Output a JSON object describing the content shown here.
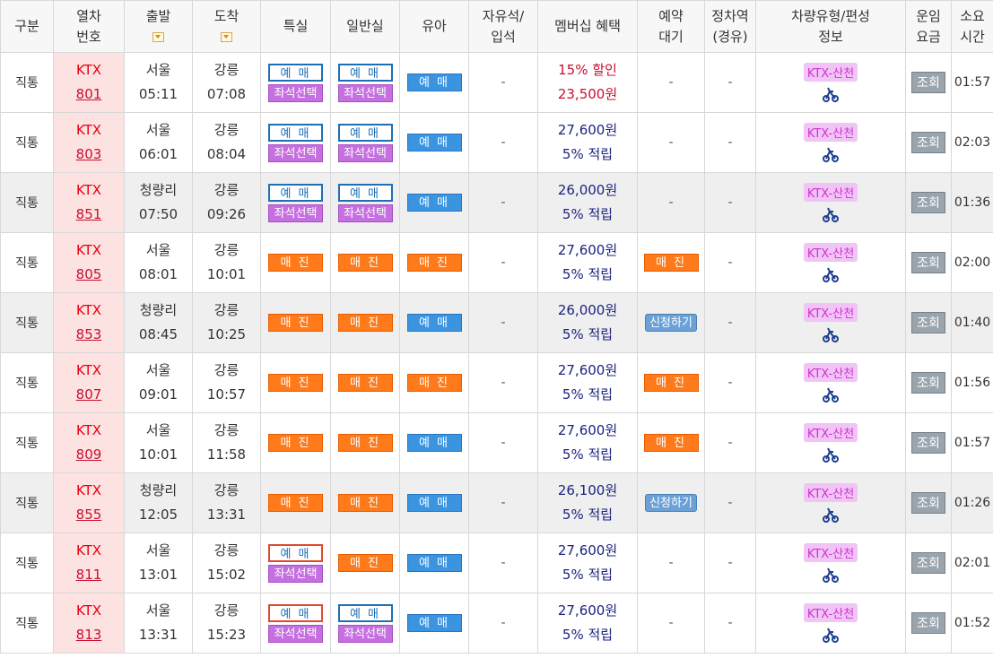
{
  "headers": {
    "type": "구분",
    "train_no": "열차번호",
    "departure": "출발",
    "arrival": "도착",
    "special": "특실",
    "general": "일반실",
    "child": "유아",
    "free_seat": "자유석/입석",
    "membership": "멤버십 혜택",
    "reserve_wait": "예약대기",
    "stops": "정차역(경유)",
    "car_type": "차량유형/편성정보",
    "fare": "운임요금",
    "duration": "소요시간"
  },
  "labels": {
    "book": "예 매",
    "seat_select": "좌석선택",
    "sold_out": "매 진",
    "apply": "신청하기",
    "search": "조회",
    "car_badge": "KTX-산천",
    "dash": "-",
    "points": "5% 적립"
  },
  "colors": {
    "red": "#e60012",
    "blue_btn": "#3a94e0",
    "orange": "#ff7a1a",
    "purple": "#c56fe0"
  },
  "icons": {
    "sort": "sort-dropdown-icon",
    "cart": "bicycle-icon"
  },
  "rows": [
    {
      "type": "직통",
      "cls": "KTX",
      "no": "801",
      "dep": "서울",
      "dep_time": "05:11",
      "arr": "강릉",
      "arr_time": "07:08",
      "special": "book",
      "general": "book",
      "child": "book",
      "free": "-",
      "mem1": "15% 할인",
      "mem2": "23,500원",
      "discount": true,
      "wait": "-",
      "stops": "-",
      "duration": "01:57",
      "gray": false,
      "red_special": false
    },
    {
      "type": "직통",
      "cls": "KTX",
      "no": "803",
      "dep": "서울",
      "dep_time": "06:01",
      "arr": "강릉",
      "arr_time": "08:04",
      "special": "book",
      "general": "book",
      "child": "book",
      "free": "-",
      "mem1": "27,600원",
      "mem2": "5% 적립",
      "discount": false,
      "wait": "-",
      "stops": "-",
      "duration": "02:03",
      "gray": false,
      "red_special": false
    },
    {
      "type": "직통",
      "cls": "KTX",
      "no": "851",
      "dep": "청량리",
      "dep_time": "07:50",
      "arr": "강릉",
      "arr_time": "09:26",
      "special": "book",
      "general": "book",
      "child": "book",
      "free": "-",
      "mem1": "26,000원",
      "mem2": "5% 적립",
      "discount": false,
      "wait": "-",
      "stops": "-",
      "duration": "01:36",
      "gray": true,
      "red_special": false
    },
    {
      "type": "직통",
      "cls": "KTX",
      "no": "805",
      "dep": "서울",
      "dep_time": "08:01",
      "arr": "강릉",
      "arr_time": "10:01",
      "special": "sold",
      "general": "sold",
      "child": "sold",
      "free": "-",
      "mem1": "27,600원",
      "mem2": "5% 적립",
      "discount": false,
      "wait": "sold",
      "stops": "-",
      "duration": "02:00",
      "gray": false,
      "red_special": false
    },
    {
      "type": "직통",
      "cls": "KTX",
      "no": "853",
      "dep": "청량리",
      "dep_time": "08:45",
      "arr": "강릉",
      "arr_time": "10:25",
      "special": "sold",
      "general": "sold",
      "child": "book",
      "free": "-",
      "mem1": "26,000원",
      "mem2": "5% 적립",
      "discount": false,
      "wait": "apply",
      "stops": "-",
      "duration": "01:40",
      "gray": true,
      "red_special": false
    },
    {
      "type": "직통",
      "cls": "KTX",
      "no": "807",
      "dep": "서울",
      "dep_time": "09:01",
      "arr": "강릉",
      "arr_time": "10:57",
      "special": "sold",
      "general": "sold",
      "child": "sold",
      "free": "-",
      "mem1": "27,600원",
      "mem2": "5% 적립",
      "discount": false,
      "wait": "sold",
      "stops": "-",
      "duration": "01:56",
      "gray": false,
      "red_special": false
    },
    {
      "type": "직통",
      "cls": "KTX",
      "no": "809",
      "dep": "서울",
      "dep_time": "10:01",
      "arr": "강릉",
      "arr_time": "11:58",
      "special": "sold",
      "general": "sold",
      "child": "book",
      "free": "-",
      "mem1": "27,600원",
      "mem2": "5% 적립",
      "discount": false,
      "wait": "sold",
      "stops": "-",
      "duration": "01:57",
      "gray": false,
      "red_special": false
    },
    {
      "type": "직통",
      "cls": "KTX",
      "no": "855",
      "dep": "청량리",
      "dep_time": "12:05",
      "arr": "강릉",
      "arr_time": "13:31",
      "special": "sold",
      "general": "sold",
      "child": "book",
      "free": "-",
      "mem1": "26,100원",
      "mem2": "5% 적립",
      "discount": false,
      "wait": "apply",
      "stops": "-",
      "duration": "01:26",
      "gray": true,
      "red_special": false
    },
    {
      "type": "직통",
      "cls": "KTX",
      "no": "811",
      "dep": "서울",
      "dep_time": "13:01",
      "arr": "강릉",
      "arr_time": "15:02",
      "special": "book",
      "general": "sold",
      "child": "book",
      "free": "-",
      "mem1": "27,600원",
      "mem2": "5% 적립",
      "discount": false,
      "wait": "-",
      "stops": "-",
      "duration": "02:01",
      "gray": false,
      "red_special": true
    },
    {
      "type": "직통",
      "cls": "KTX",
      "no": "813",
      "dep": "서울",
      "dep_time": "13:31",
      "arr": "강릉",
      "arr_time": "15:23",
      "special": "book",
      "general": "book",
      "child": "book",
      "free": "-",
      "mem1": "27,600원",
      "mem2": "5% 적립",
      "discount": false,
      "wait": "-",
      "stops": "-",
      "duration": "01:52",
      "gray": false,
      "red_special": true
    }
  ]
}
